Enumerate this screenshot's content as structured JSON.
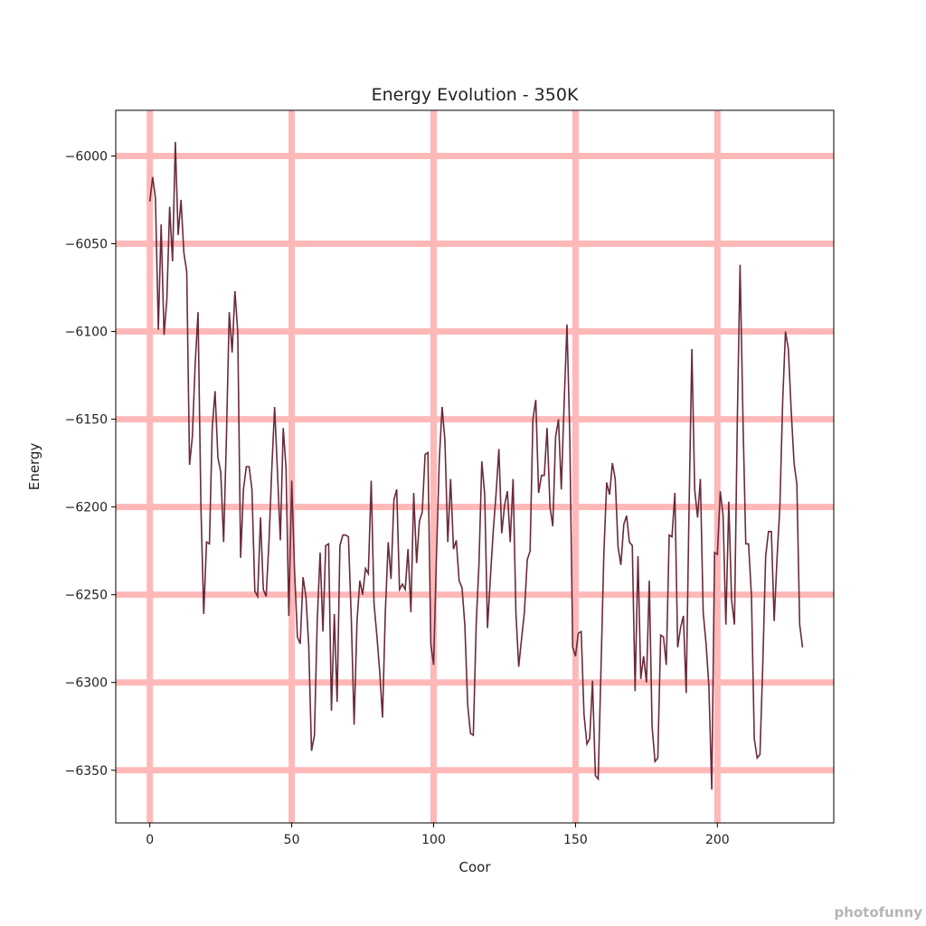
{
  "chart_data": {
    "type": "line",
    "title": "Energy Evolution - 350K",
    "xlabel": "Coor",
    "ylabel": "Energy",
    "xlim": [
      -12,
      241
    ],
    "ylim": [
      -6380,
      -5974
    ],
    "xticks": [
      0,
      50,
      100,
      150,
      200
    ],
    "yticks": [
      -6000,
      -6050,
      -6100,
      -6150,
      -6200,
      -6250,
      -6300,
      -6350
    ],
    "grid": true,
    "colors": {
      "line": "#6b2a3a",
      "grid": "#ffb8b8"
    },
    "series": [
      {
        "x": [
          0,
          1,
          2,
          3,
          4,
          5,
          6,
          7,
          8,
          9,
          10,
          11,
          12,
          13,
          14,
          15,
          16,
          17,
          18,
          19,
          20,
          21,
          22,
          23,
          24,
          25,
          26,
          27,
          28,
          29,
          30,
          31,
          32,
          33,
          34,
          35,
          36,
          37,
          38,
          39,
          40,
          41,
          42,
          43,
          44,
          45,
          46,
          47,
          48,
          49,
          50,
          51,
          52,
          53,
          54,
          55,
          56,
          57,
          58,
          59,
          60,
          61,
          62,
          63,
          64,
          65,
          66,
          67,
          68,
          69,
          70,
          71,
          72,
          73,
          74,
          75,
          76,
          77,
          78,
          79,
          80,
          81,
          82,
          83,
          84,
          85,
          86,
          87,
          88,
          89,
          90,
          91,
          92,
          93,
          94,
          95,
          96,
          97,
          98,
          99,
          100,
          101,
          102,
          103,
          104,
          105,
          106,
          107,
          108,
          109,
          110,
          111,
          112,
          113,
          114,
          115,
          116,
          117,
          118,
          119,
          120,
          121,
          122,
          123,
          124,
          125,
          126,
          127,
          128,
          129,
          130,
          131,
          132,
          133,
          134,
          135,
          136,
          137,
          138,
          139,
          140,
          141,
          142,
          143,
          144,
          145,
          146,
          147,
          148,
          149,
          150,
          151,
          152,
          153,
          154,
          155,
          156,
          157,
          158,
          159,
          160,
          161,
          162,
          163,
          164,
          165,
          166,
          167,
          168,
          169,
          170,
          171,
          172,
          173,
          174,
          175,
          176,
          177,
          178,
          179,
          180,
          181,
          182,
          183,
          184,
          185,
          186,
          187,
          188,
          189,
          190,
          191,
          192,
          193,
          194,
          195,
          196,
          197,
          198,
          199,
          200,
          201,
          202,
          203,
          204,
          205,
          206,
          207,
          208,
          209,
          210,
          211,
          212,
          213,
          214,
          215,
          216,
          217,
          218,
          219,
          220,
          221,
          222,
          223,
          224,
          225,
          226,
          227,
          228,
          229,
          230
        ],
        "values": [
          -6026,
          -6012,
          -6024,
          -6099,
          -6039,
          -6102,
          -6082,
          -6029,
          -6060,
          -5992,
          -6045,
          -6025,
          -6055,
          -6066,
          -6176,
          -6160,
          -6118,
          -6089,
          -6200,
          -6261,
          -6220,
          -6221,
          -6155,
          -6134,
          -6172,
          -6180,
          -6220,
          -6160,
          -6089,
          -6112,
          -6077,
          -6100,
          -6229,
          -6190,
          -6177,
          -6177,
          -6190,
          -6248,
          -6251,
          -6206,
          -6247,
          -6251,
          -6219,
          -6178,
          -6143,
          -6181,
          -6219,
          -6155,
          -6178,
          -6262,
          -6185,
          -6236,
          -6274,
          -6278,
          -6240,
          -6251,
          -6279,
          -6339,
          -6330,
          -6265,
          -6226,
          -6271,
          -6222,
          -6221,
          -6316,
          -6261,
          -6311,
          -6222,
          -6216,
          -6216,
          -6217,
          -6264,
          -6324,
          -6265,
          -6242,
          -6250,
          -6235,
          -6238,
          -6185,
          -6255,
          -6273,
          -6294,
          -6320,
          -6260,
          -6220,
          -6241,
          -6196,
          -6190,
          -6247,
          -6244,
          -6247,
          -6224,
          -6260,
          -6192,
          -6232,
          -6208,
          -6203,
          -6170,
          -6169,
          -6278,
          -6290,
          -6229,
          -6173,
          -6143,
          -6162,
          -6220,
          -6184,
          -6224,
          -6219,
          -6242,
          -6246,
          -6267,
          -6313,
          -6329,
          -6330,
          -6267,
          -6232,
          -6174,
          -6193,
          -6269,
          -6240,
          -6214,
          -6193,
          -6167,
          -6215,
          -6199,
          -6191,
          -6220,
          -6184,
          -6260,
          -6291,
          -6275,
          -6260,
          -6230,
          -6225,
          -6150,
          -6139,
          -6192,
          -6182,
          -6182,
          -6155,
          -6200,
          -6211,
          -6160,
          -6150,
          -6190,
          -6140,
          -6096,
          -6160,
          -6280,
          -6285,
          -6272,
          -6271,
          -6318,
          -6335,
          -6332,
          -6299,
          -6353,
          -6355,
          -6290,
          -6226,
          -6186,
          -6193,
          -6175,
          -6184,
          -6223,
          -6233,
          -6210,
          -6205,
          -6220,
          -6222,
          -6305,
          -6228,
          -6298,
          -6285,
          -6300,
          -6242,
          -6325,
          -6345,
          -6343,
          -6273,
          -6274,
          -6290,
          -6216,
          -6217,
          -6192,
          -6280,
          -6269,
          -6262,
          -6306,
          -6203,
          -6110,
          -6190,
          -6206,
          -6184,
          -6260,
          -6278,
          -6302,
          -6361,
          -6226,
          -6227,
          -6191,
          -6205,
          -6267,
          -6197,
          -6253,
          -6267,
          -6152,
          -6062,
          -6150,
          -6221,
          -6221,
          -6251,
          -6332,
          -6343,
          -6341,
          -6290,
          -6228,
          -6214,
          -6214,
          -6265,
          -6230,
          -6200,
          -6140,
          -6100,
          -6110,
          -6145,
          -6175,
          -6187,
          -6267,
          -6280
        ]
      }
    ]
  },
  "watermark": "photofunny"
}
